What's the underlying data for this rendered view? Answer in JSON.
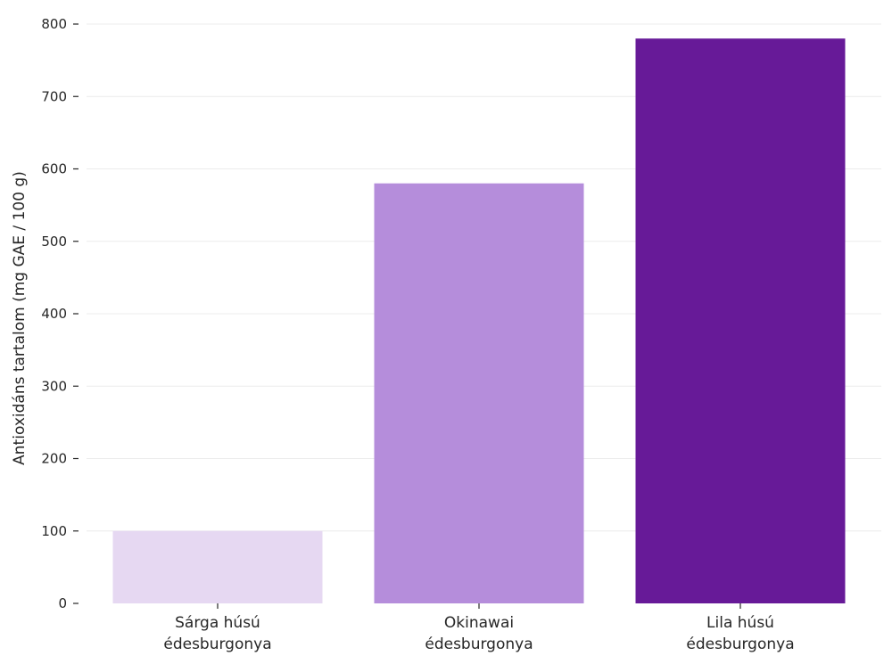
{
  "chart_data": {
    "type": "bar",
    "categories": [
      [
        "Sárga húsú",
        "édesburgonya"
      ],
      [
        "Okinawai",
        "édesburgonya"
      ],
      [
        "Lila húsú",
        "édesburgonya"
      ]
    ],
    "values": [
      100,
      580,
      780
    ],
    "colors": [
      "#e6d8f2",
      "#b58ddb",
      "#671a98"
    ],
    "xlabel": "",
    "ylabel": "Antioxidáns tartalom (mg GAE / 100 g)",
    "ylim": [
      0,
      800
    ],
    "yticks": [
      0,
      100,
      200,
      300,
      400,
      500,
      600,
      700,
      800
    ],
    "grid": true,
    "legend": "none"
  }
}
